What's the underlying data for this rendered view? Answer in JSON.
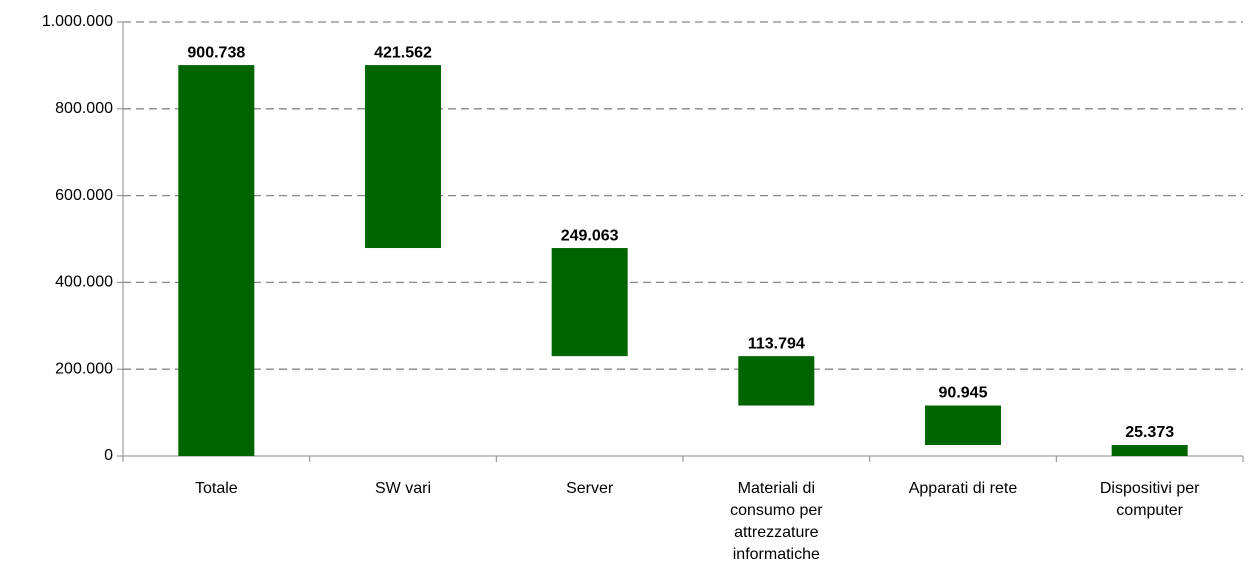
{
  "chart_data": {
    "type": "waterfall",
    "categories": [
      "Totale",
      "SW vari",
      "Server",
      "Materiali di consumo per attrezzature informatiche",
      "Apparati di rete",
      "Dispositivi per computer"
    ],
    "values": [
      900738,
      421562,
      249063,
      113794,
      90945,
      25373
    ],
    "value_labels": [
      "900.738",
      "421.562",
      "249.063",
      "113.794",
      "90.945",
      "25.373"
    ],
    "color": "#006400",
    "ylim": [
      0,
      1000000
    ],
    "yticks": [
      0,
      {
        "value": 200000,
        "label": "200.000"
      },
      {
        "value": 400000,
        "label": "400.000"
      },
      {
        "value": 600000,
        "label": "600.000"
      },
      {
        "value": 800000,
        "label": "800.000"
      },
      {
        "value": 1000000,
        "label": "1.000.000"
      }
    ],
    "grid": true
  }
}
